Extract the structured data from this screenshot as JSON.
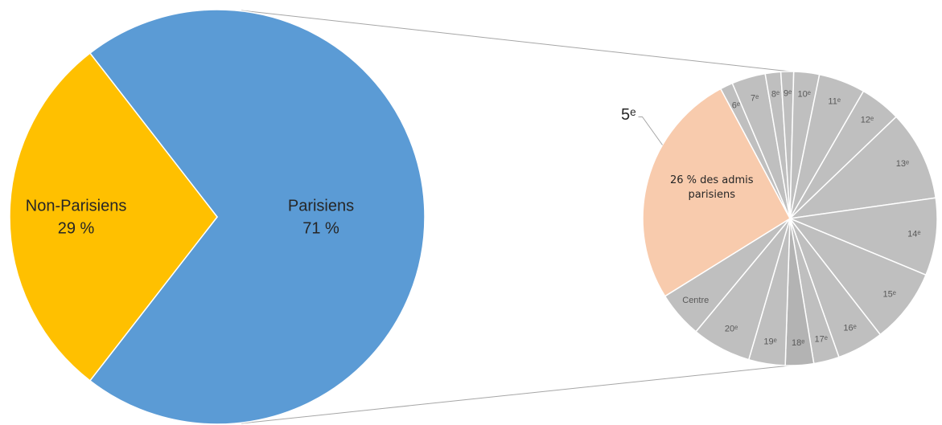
{
  "chart_data": [
    {
      "type": "pie",
      "categories": [
        "Parisiens",
        "Non-Parisiens"
      ],
      "values": [
        71,
        29
      ],
      "value_labels": [
        "71 %",
        "29 %"
      ],
      "colors": [
        "#5b9bd5",
        "#ffc000"
      ]
    },
    {
      "type": "pie",
      "categories": [
        "6ᵉ",
        "7ᵉ",
        "8ᵉ",
        "9ᵉ",
        "10ᵉ",
        "11ᵉ",
        "12ᵉ",
        "13ᵉ",
        "14ᵉ",
        "15ᵉ",
        "16ᵉ",
        "17ᵉ",
        "18ᵉ",
        "19ᵉ",
        "20ᵉ",
        "Centre",
        "5ᵉ"
      ],
      "values": [
        1.4,
        3.7,
        1.7,
        1.4,
        2.8,
        5.1,
        4.5,
        9.9,
        8.5,
        8.2,
        5.1,
        2.8,
        3.1,
        4.0,
        6.5,
        5.1,
        26
      ],
      "value_labels": [
        null,
        null,
        null,
        null,
        null,
        null,
        null,
        null,
        null,
        null,
        null,
        null,
        null,
        null,
        null,
        null,
        "26 % des admis parisiens"
      ],
      "colors": [
        "#bfbfbf",
        "#bfbfbf",
        "#bfbfbf",
        "#bfbfbf",
        "#bfbfbf",
        "#bfbfbf",
        "#bfbfbf",
        "#bfbfbf",
        "#bfbfbf",
        "#bfbfbf",
        "#bfbfbf",
        "#bfbfbf",
        "#b3b3b3",
        "#bfbfbf",
        "#bfbfbf",
        "#bfbfbf",
        "#f8cbad"
      ]
    }
  ]
}
